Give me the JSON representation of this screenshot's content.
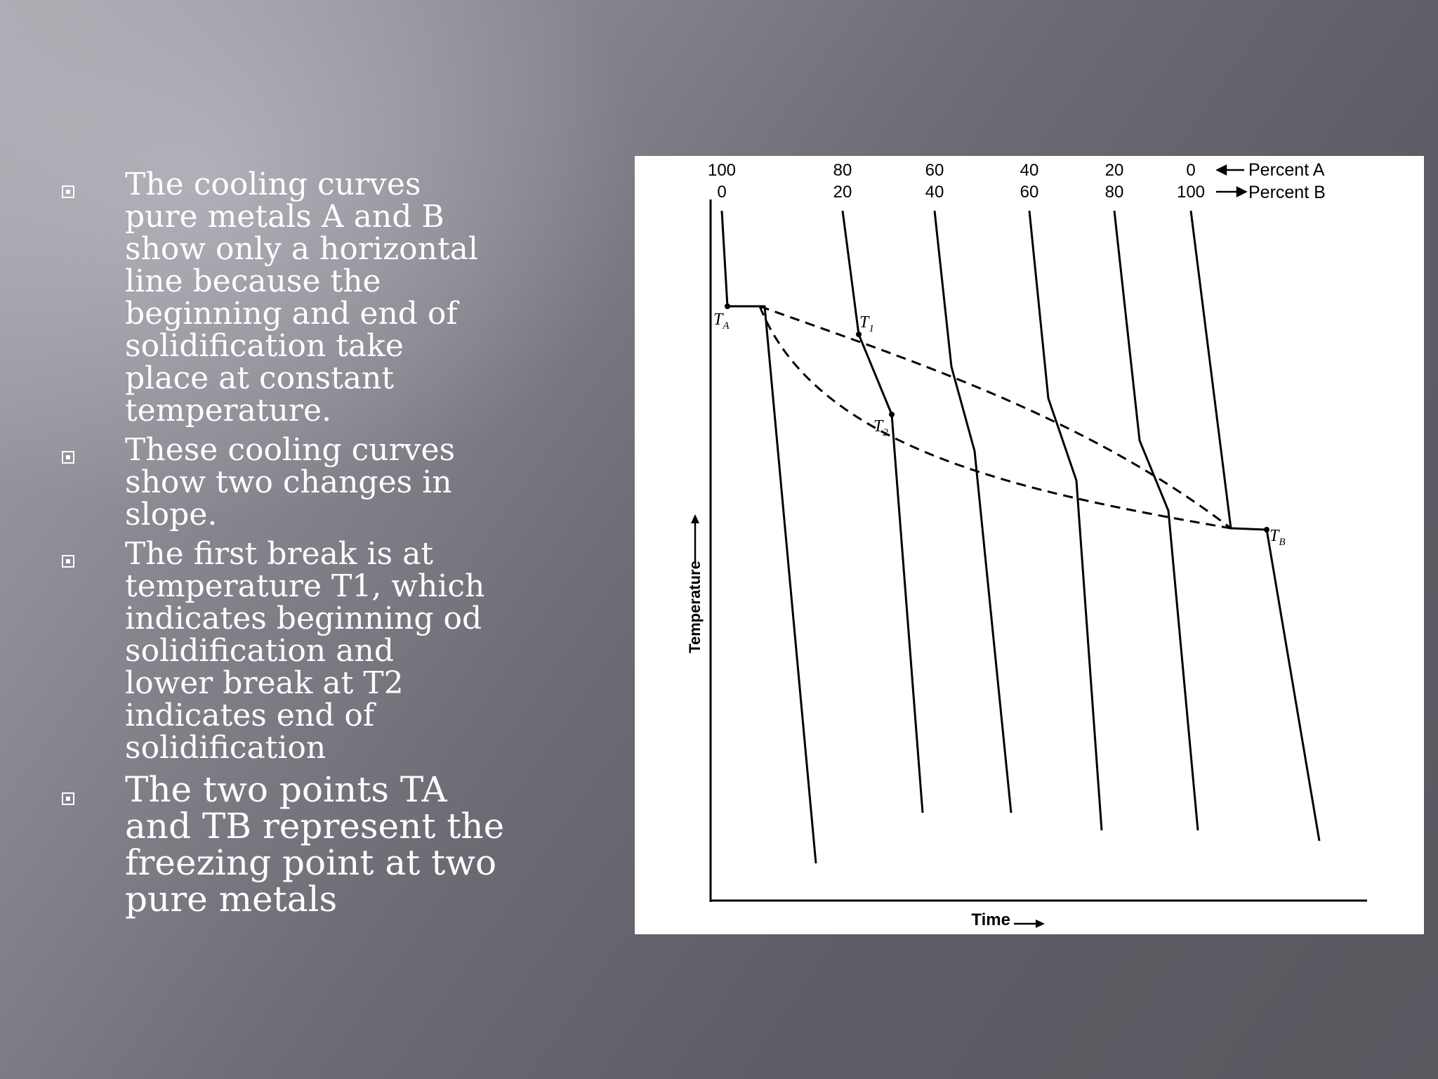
{
  "bullets": [
    {
      "lines": [
        "The cooling curves",
        "pure metals A and B",
        "show only a horizontal",
        "line because the",
        "beginning and end of",
        "solidification take",
        "place at constant",
        "temperature."
      ],
      "size": "small"
    },
    {
      "lines": [
        "These cooling curves",
        "show two changes in",
        "slope."
      ],
      "size": "small"
    },
    {
      "lines": [
        "The first break is at",
        "temperature T1, which",
        "indicates beginning od",
        "solidification and",
        "lower break at T2",
        "indicates end of",
        "solidification"
      ],
      "size": "small"
    },
    {
      "lines": [
        "The two points TA",
        "and TB represent the",
        "freezing point at two",
        "pure metals"
      ],
      "size": "large"
    }
  ],
  "diagram": {
    "composition_columns": [
      {
        "percent_a": "100",
        "percent_b": "0"
      },
      {
        "percent_a": "80",
        "percent_b": "20"
      },
      {
        "percent_a": "60",
        "percent_b": "40"
      },
      {
        "percent_a": "40",
        "percent_b": "60"
      },
      {
        "percent_a": "20",
        "percent_b": "80"
      },
      {
        "percent_a": "0",
        "percent_b": "100"
      }
    ],
    "legend_percent_a": "Percent A",
    "legend_percent_b": "Percent B",
    "y_axis_label": "Temperature",
    "x_axis_label": "Time",
    "point_labels": {
      "ta": "T",
      "ta_sub": "A",
      "t1": "T",
      "t1_sub": "1",
      "t2": "T",
      "t2_sub": "2",
      "tb": "T",
      "tb_sub": "B"
    }
  }
}
